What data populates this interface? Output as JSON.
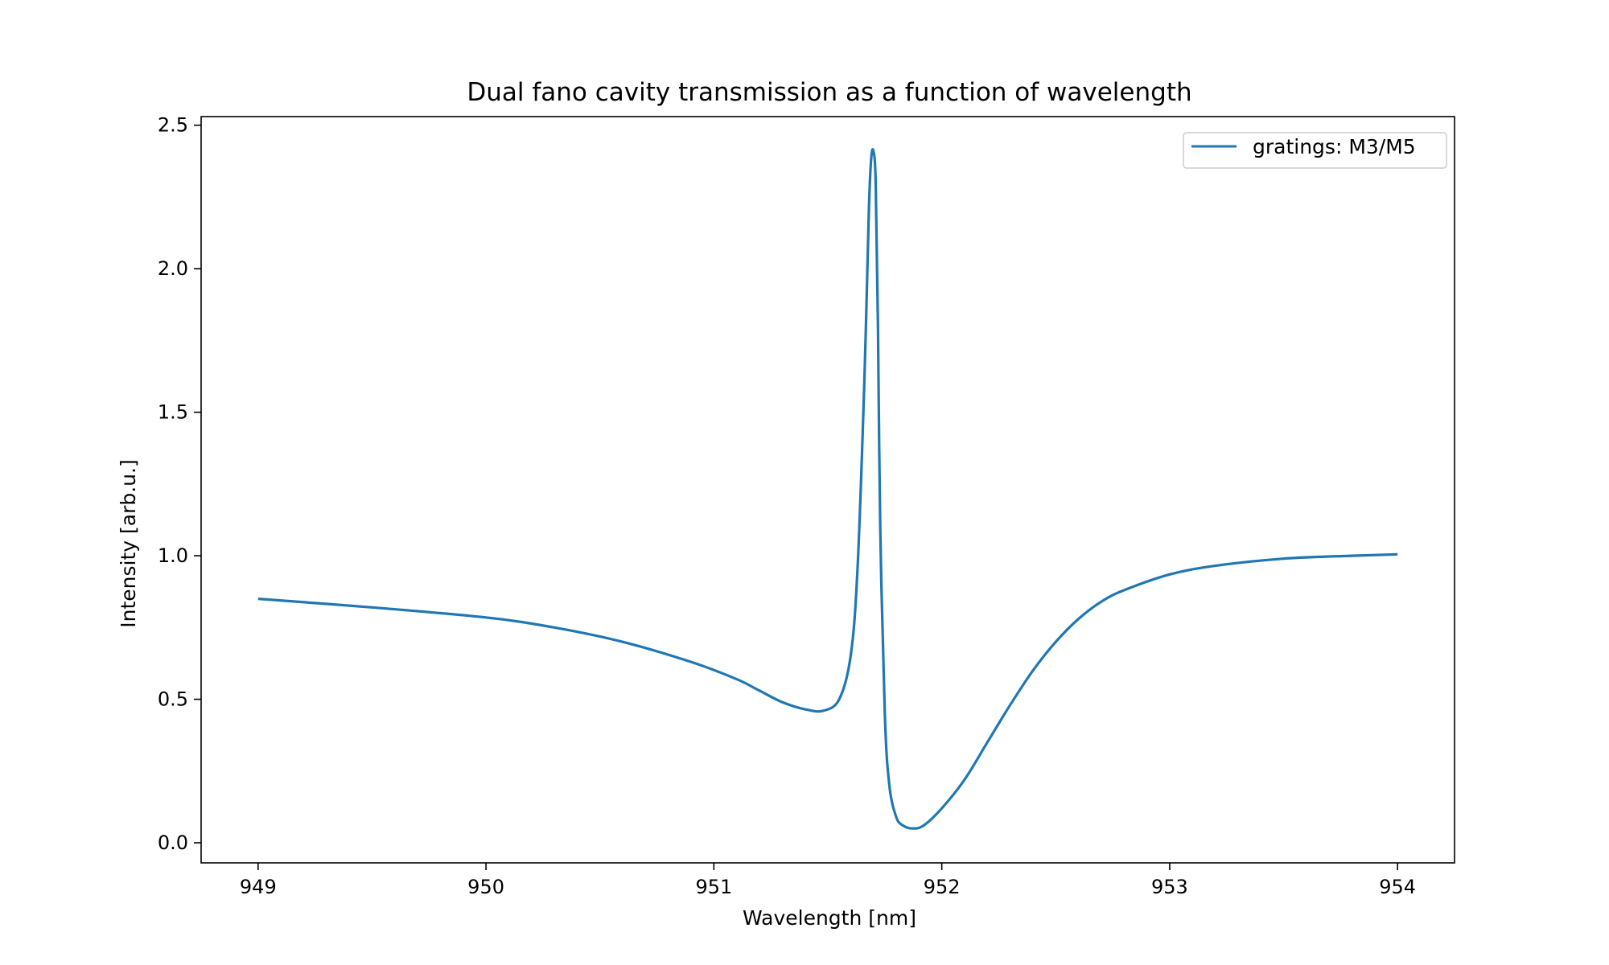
{
  "chart_data": {
    "type": "line",
    "title": "Dual fano cavity transmission as a function of wavelength",
    "xlabel": "Wavelength [nm]",
    "ylabel": "Intensity [arb.u.]",
    "xlim": [
      948.75,
      954.25
    ],
    "ylim": [
      -0.07,
      2.53
    ],
    "xticks": [
      949,
      950,
      951,
      952,
      953,
      954
    ],
    "yticks": [
      0.0,
      0.5,
      1.0,
      1.5,
      2.0,
      2.5
    ],
    "xtick_labels": [
      "949",
      "950",
      "951",
      "952",
      "953",
      "954"
    ],
    "ytick_labels": [
      "0.0",
      "0.5",
      "1.0",
      "1.5",
      "2.0",
      "2.5"
    ],
    "grid": false,
    "legend_position": "top-right",
    "series_color": "#1f77b4",
    "series": [
      {
        "name": "gratings: M3/M5",
        "x": [
          949.0,
          949.5,
          950.0,
          950.3,
          950.6,
          950.9,
          951.1,
          951.2,
          951.3,
          951.4,
          951.48,
          951.55,
          951.6,
          951.63,
          951.66,
          951.68,
          951.69,
          951.7,
          951.71,
          951.72,
          951.73,
          951.75,
          951.77,
          951.8,
          951.83,
          951.87,
          951.92,
          952.0,
          952.1,
          952.2,
          952.3,
          952.4,
          952.5,
          952.6,
          952.7,
          952.8,
          953.0,
          953.2,
          953.5,
          953.8,
          954.0
        ],
        "y": [
          0.85,
          0.82,
          0.785,
          0.75,
          0.7,
          0.63,
          0.57,
          0.53,
          0.49,
          0.465,
          0.46,
          0.5,
          0.65,
          0.95,
          1.6,
          2.2,
          2.38,
          2.41,
          2.3,
          1.8,
          1.1,
          0.45,
          0.2,
          0.09,
          0.06,
          0.05,
          0.06,
          0.12,
          0.22,
          0.35,
          0.48,
          0.6,
          0.7,
          0.78,
          0.84,
          0.88,
          0.935,
          0.965,
          0.99,
          1.0,
          1.005
        ]
      }
    ]
  }
}
